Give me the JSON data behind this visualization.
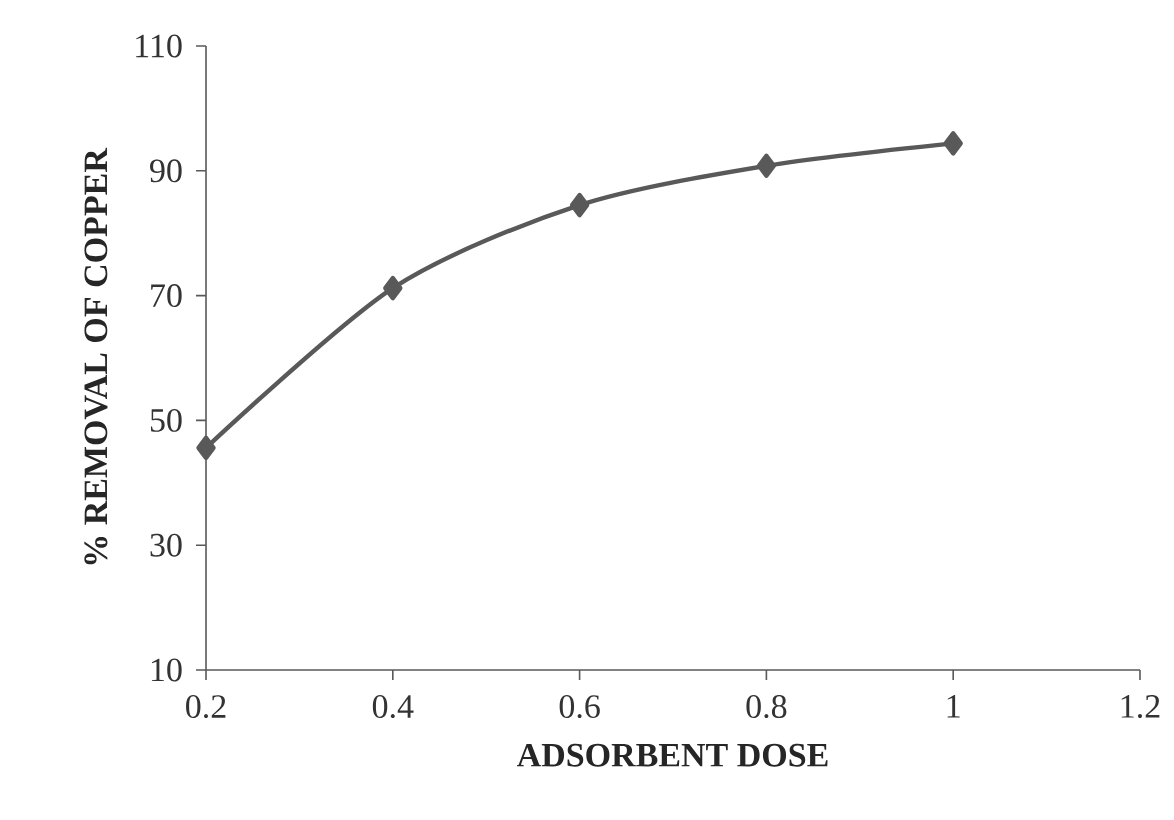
{
  "chart_data": {
    "type": "line",
    "xlabel": "ADSORBENT  DOSE",
    "ylabel": "% REMOVAL  OF COPPER",
    "x": [
      0.2,
      0.4,
      0.6,
      0.8,
      1
    ],
    "series": [
      {
        "color": "#595959",
        "values": [
          45.6,
          71.2,
          84.5,
          90.8,
          94.4
        ]
      }
    ],
    "xlim": [
      0.2,
      1.2
    ],
    "xticks": [
      0.2,
      0.4,
      0.6,
      0.8,
      1,
      1.2
    ],
    "ylim": [
      10,
      110
    ],
    "yticks": [
      10,
      30,
      50,
      70,
      90,
      110
    ],
    "marker": "diamond",
    "line_style": "solid"
  }
}
